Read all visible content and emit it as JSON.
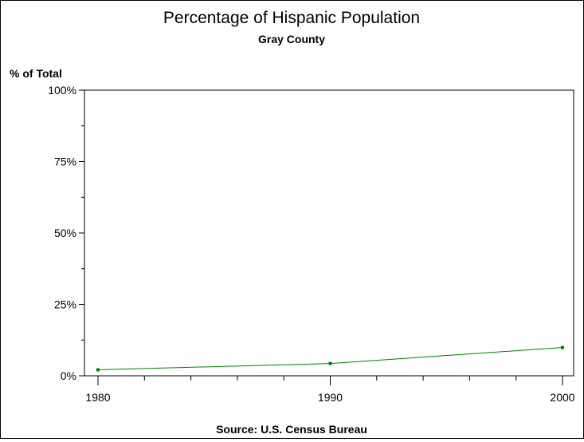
{
  "chart_data": {
    "type": "line",
    "title": "Percentage of Hispanic Population",
    "subtitle": "Gray County",
    "ylabel": "% of Total",
    "footnote": "Source: U.S. Census Bureau",
    "x": [
      1980,
      1990,
      2000
    ],
    "xticks": [
      "1980",
      "1990",
      "2000"
    ],
    "xlim": [
      1980,
      2000
    ],
    "ylim": [
      0,
      100
    ],
    "yticks": [
      "0%",
      "25%",
      "50%",
      "75%",
      "100%"
    ],
    "series": [
      {
        "values": [
          2.1,
          4.3,
          9.9
        ],
        "color": "#008000"
      }
    ],
    "grid": false
  }
}
